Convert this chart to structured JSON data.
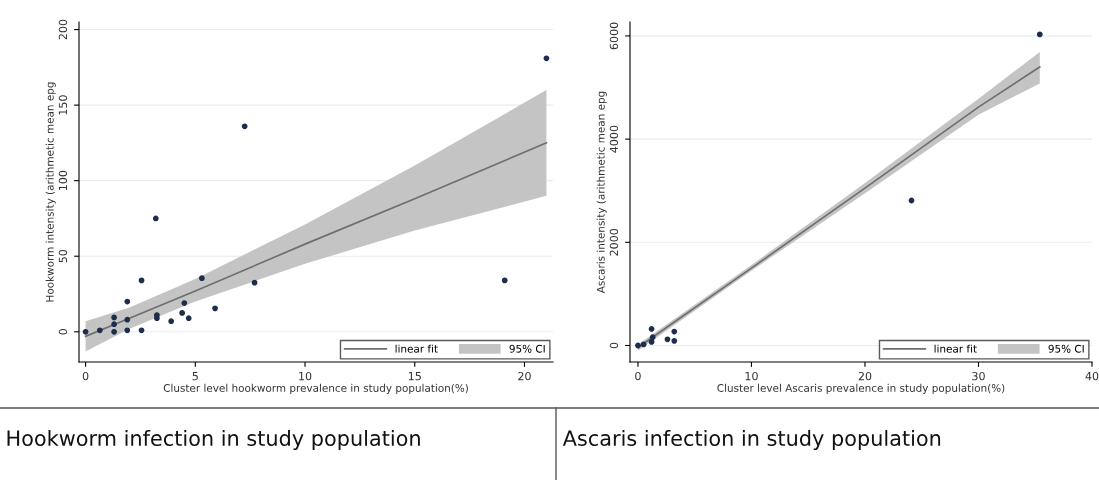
{
  "chart_data": [
    {
      "type": "scatter",
      "title": "Hookworm infection in study population",
      "xlabel": "Cluster level hookworm prevalence in study population(%)",
      "ylabel": "Hookworm intensity (arithmetic mean epg",
      "xlim": [
        -0.3,
        21.3
      ],
      "ylim": [
        -20,
        205
      ],
      "xticks": [
        0,
        5,
        10,
        15,
        20
      ],
      "yticks": [
        0,
        50,
        100,
        150,
        200
      ],
      "grid": "y",
      "legend": "bottom right",
      "marker": "circle",
      "annotations": [
        "95% CI"
      ],
      "series": [
        {
          "type": "line",
          "marker": "none",
          "name": "linear fit",
          "color": "#6e6e6e",
          "x": [
            0,
            2,
            5,
            10,
            15,
            21
          ],
          "values": [
            -3,
            9,
            27,
            58,
            88,
            125
          ],
          "lower": [
            -13,
            2,
            20,
            45,
            67,
            90
          ],
          "upper": [
            7,
            16,
            35,
            71,
            110,
            160
          ]
        },
        {
          "color": "#1f2d4d",
          "x": [
            0,
            0.65,
            1.3,
            1.3,
            1.3,
            1.9,
            1.9,
            1.9,
            2.55,
            2.55,
            3.2,
            3.25,
            3.25,
            3.9,
            4.4,
            4.5,
            4.7,
            5.3,
            5.9,
            7.25,
            7.7,
            19.1,
            21
          ],
          "values": [
            0,
            1,
            9.5,
            5,
            0,
            20,
            8,
            1,
            1,
            34,
            75,
            11,
            9,
            7,
            12.5,
            19,
            9,
            35.5,
            15.5,
            136,
            32.5,
            34,
            181
          ]
        }
      ]
    },
    {
      "type": "scatter",
      "title": "Ascaris infection in study population",
      "xlabel": "Cluster level Ascaris prevalence in study population(%)",
      "ylabel": "Ascaris intensity (arithmetic mean epg",
      "xlim": [
        -0.7,
        40
      ],
      "ylim": [
        -320,
        6270
      ],
      "xticks": [
        0,
        10,
        20,
        30,
        40
      ],
      "yticks": [
        0,
        2000,
        4000,
        6000
      ],
      "grid": "y",
      "legend": "bottom right",
      "marker": "circle",
      "annotations": [
        "95% CI"
      ],
      "series": [
        {
          "type": "line",
          "marker": "none",
          "name": "linear fit",
          "color": "#6e6e6e",
          "x": [
            0,
            10,
            20,
            30,
            35.4
          ],
          "values": [
            -40,
            1500,
            3050,
            4620,
            5400
          ],
          "lower": [
            -100,
            1450,
            2950,
            4470,
            5080
          ],
          "upper": [
            20,
            1560,
            3150,
            4780,
            5690
          ]
        },
        {
          "color": "#1f2d4d",
          "x": [
            0,
            0.5,
            1.2,
            1.2,
            1.3,
            2.6,
            3.2,
            3.2,
            24.1,
            35.4
          ],
          "values": [
            0,
            20,
            70,
            320,
            160,
            120,
            90,
            270,
            2810,
            6030
          ]
        }
      ]
    }
  ]
}
